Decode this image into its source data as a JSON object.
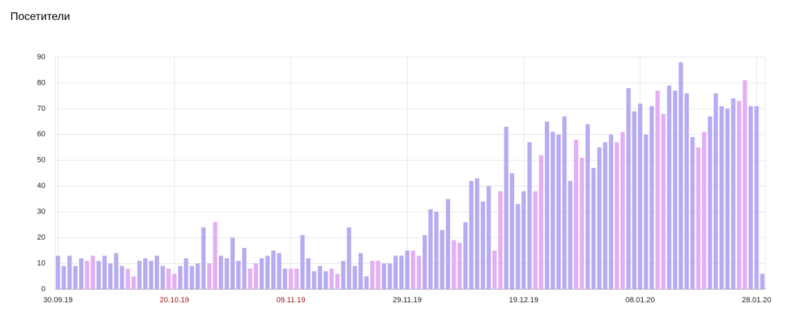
{
  "chart_data": {
    "type": "bar",
    "title": "Посетители",
    "categories": [
      "30.09.19",
      null,
      null,
      null,
      null,
      null,
      null,
      null,
      null,
      null,
      null,
      null,
      null,
      null,
      null,
      null,
      null,
      null,
      null,
      null,
      "20.10.19",
      null,
      null,
      null,
      null,
      null,
      null,
      null,
      null,
      null,
      null,
      null,
      null,
      null,
      null,
      null,
      null,
      null,
      null,
      null,
      "09.11.19",
      null,
      null,
      null,
      null,
      null,
      null,
      null,
      null,
      null,
      null,
      null,
      null,
      null,
      null,
      null,
      null,
      null,
      null,
      null,
      "29.11.19",
      null,
      null,
      null,
      null,
      null,
      null,
      null,
      null,
      null,
      null,
      null,
      null,
      null,
      null,
      null,
      null,
      null,
      null,
      null,
      "19.12.19",
      null,
      null,
      null,
      null,
      null,
      null,
      null,
      null,
      null,
      null,
      null,
      null,
      null,
      null,
      null,
      null,
      null,
      null,
      null,
      "08.01.20",
      null,
      null,
      null,
      null,
      null,
      null,
      null,
      null,
      null,
      null,
      null,
      null,
      null,
      null,
      null,
      null,
      null,
      null,
      null,
      "28.01.20",
      null
    ],
    "values": [
      13,
      9,
      13,
      9,
      12,
      11,
      13,
      11,
      13,
      10,
      14,
      9,
      8,
      5,
      11,
      12,
      11,
      13,
      9,
      8,
      6,
      9,
      12,
      9,
      10,
      24,
      10,
      26,
      13,
      12,
      20,
      11,
      16,
      8,
      10,
      12,
      13,
      15,
      14,
      8,
      8,
      8,
      21,
      12,
      7,
      9,
      7,
      8,
      6,
      11,
      24,
      9,
      14,
      5,
      11,
      11,
      10,
      10,
      13,
      13,
      15,
      15,
      13,
      21,
      31,
      30,
      23,
      35,
      19,
      18,
      26,
      42,
      43,
      34,
      40,
      15,
      38,
      63,
      45,
      33,
      38,
      57,
      38,
      52,
      65,
      61,
      60,
      67,
      42,
      58,
      51,
      64,
      47,
      55,
      57,
      60,
      57,
      61,
      78,
      69,
      72,
      60,
      71,
      77,
      68,
      79,
      77,
      88,
      76,
      59,
      55,
      61,
      67,
      76,
      71,
      70,
      74,
      73,
      81,
      71,
      71,
      6
    ],
    "color": "#b7abf1",
    "weekend_color": "#e3aff2",
    "weekend_label_color": "#a31515",
    "bar_colors": [
      "#b7abf1",
      "#b7abf1",
      "#b7abf1",
      "#b7abf1",
      "#b7abf1",
      "#e3aff2",
      "#e3aff2",
      "#b7abf1",
      "#b7abf1",
      "#b7abf1",
      "#b7abf1",
      "#b7abf1",
      "#e3aff2",
      "#e3aff2",
      "#b7abf1",
      "#b7abf1",
      "#b7abf1",
      "#b7abf1",
      "#b7abf1",
      "#e3aff2",
      "#e3aff2",
      "#b7abf1",
      "#b7abf1",
      "#b7abf1",
      "#b7abf1",
      "#b7abf1",
      "#e3aff2",
      "#e3aff2",
      "#b7abf1",
      "#b7abf1",
      "#b7abf1",
      "#b7abf1",
      "#b7abf1",
      "#e3aff2",
      "#e3aff2",
      "#b7abf1",
      "#b7abf1",
      "#b7abf1",
      "#b7abf1",
      "#b7abf1",
      "#e3aff2",
      "#e3aff2",
      "#b7abf1",
      "#b7abf1",
      "#b7abf1",
      "#b7abf1",
      "#b7abf1",
      "#e3aff2",
      "#e3aff2",
      "#b7abf1",
      "#b7abf1",
      "#b7abf1",
      "#b7abf1",
      "#b7abf1",
      "#e3aff2",
      "#e3aff2",
      "#b7abf1",
      "#b7abf1",
      "#b7abf1",
      "#b7abf1",
      "#b7abf1",
      "#e3aff2",
      "#e3aff2",
      "#b7abf1",
      "#b7abf1",
      "#b7abf1",
      "#b7abf1",
      "#b7abf1",
      "#e3aff2",
      "#e3aff2",
      "#b7abf1",
      "#b7abf1",
      "#b7abf1",
      "#b7abf1",
      "#b7abf1",
      "#e3aff2",
      "#e3aff2",
      "#b7abf1",
      "#b7abf1",
      "#b7abf1",
      "#b7abf1",
      "#b7abf1",
      "#e3aff2",
      "#e3aff2",
      "#b7abf1",
      "#b7abf1",
      "#b7abf1",
      "#b7abf1",
      "#b7abf1",
      "#e3aff2",
      "#e3aff2",
      "#b7abf1",
      "#b7abf1",
      "#b7abf1",
      "#b7abf1",
      "#b7abf1",
      "#e3aff2",
      "#e3aff2",
      "#b7abf1",
      "#b7abf1",
      "#b7abf1",
      "#b7abf1",
      "#b7abf1",
      "#e3aff2",
      "#e3aff2",
      "#b7abf1",
      "#b7abf1",
      "#b7abf1",
      "#b7abf1",
      "#b7abf1",
      "#e3aff2",
      "#e3aff2",
      "#b7abf1",
      "#b7abf1",
      "#b7abf1",
      "#b7abf1",
      "#b7abf1",
      "#e3aff2",
      "#e3aff2",
      "#b7abf1",
      "#b7abf1",
      "#b7abf1"
    ],
    "ylim": [
      0,
      90
    ],
    "yticks": [
      0,
      10,
      20,
      30,
      40,
      50,
      60,
      70,
      80,
      90
    ],
    "grid": true
  }
}
